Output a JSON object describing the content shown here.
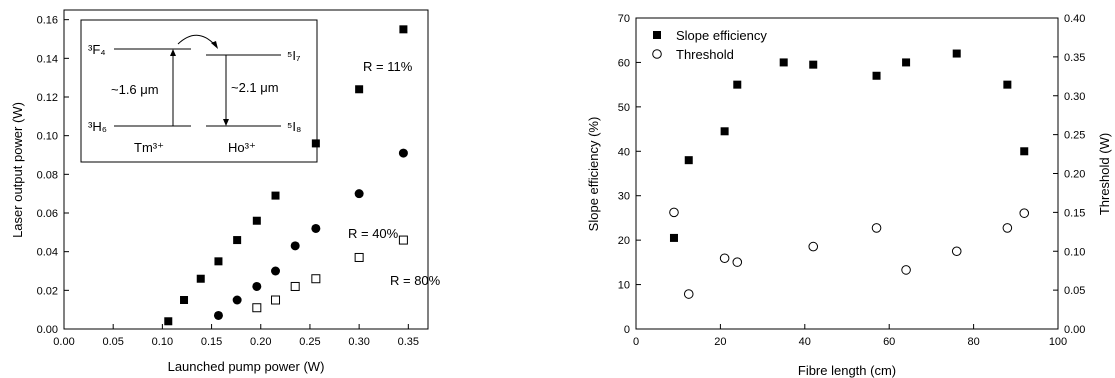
{
  "chart_data": [
    {
      "type": "scatter",
      "xlabel": "Launched pump power (W)",
      "ylabel": "Laser output power (W)",
      "xlim": [
        0.0,
        0.37
      ],
      "ylim": [
        0.0,
        0.165
      ],
      "xticks": [
        "0.00",
        "0.05",
        "0.10",
        "0.15",
        "0.20",
        "0.25",
        "0.30",
        "0.35"
      ],
      "yticks": [
        "0.00",
        "0.02",
        "0.04",
        "0.06",
        "0.08",
        "0.10",
        "0.12",
        "0.14",
        "0.16"
      ],
      "series": [
        {
          "name": "R = 11%",
          "marker": "filled-square",
          "points": [
            [
              0.106,
              0.004
            ],
            [
              0.122,
              0.015
            ],
            [
              0.139,
              0.026
            ],
            [
              0.157,
              0.035
            ],
            [
              0.176,
              0.046
            ],
            [
              0.196,
              0.056
            ],
            [
              0.215,
              0.069
            ],
            [
              0.256,
              0.096
            ],
            [
              0.3,
              0.124
            ],
            [
              0.345,
              0.155
            ]
          ]
        },
        {
          "name": "R = 40%",
          "marker": "filled-circle",
          "points": [
            [
              0.157,
              0.007
            ],
            [
              0.176,
              0.015
            ],
            [
              0.196,
              0.022
            ],
            [
              0.215,
              0.03
            ],
            [
              0.235,
              0.043
            ],
            [
              0.256,
              0.052
            ],
            [
              0.3,
              0.07
            ],
            [
              0.345,
              0.091
            ]
          ]
        },
        {
          "name": "R = 80%",
          "marker": "open-square",
          "points": [
            [
              0.196,
              0.011
            ],
            [
              0.215,
              0.015
            ],
            [
              0.235,
              0.022
            ],
            [
              0.256,
              0.026
            ],
            [
              0.3,
              0.037
            ],
            [
              0.345,
              0.046
            ]
          ]
        }
      ],
      "annotations": [
        "R = 11%",
        "R = 40%",
        "R = 80%"
      ],
      "inset": {
        "left_upper": "³F₄",
        "left_lower": "³H₆",
        "right_upper": "⁵I₇",
        "right_lower": "⁵I₈",
        "pump_label": "~1.6 μm",
        "emit_label": "~2.1 μm",
        "ion_left": "Tm³⁺",
        "ion_right": "Ho³⁺"
      }
    },
    {
      "type": "scatter",
      "xlabel": "Fibre length (cm)",
      "ylabel": "Slope efficiency (%)",
      "ylabel_right": "Threshold (W)",
      "xlim": [
        0,
        100
      ],
      "ylim": [
        0,
        70
      ],
      "ylim_right": [
        0.0,
        0.4
      ],
      "xticks": [
        "0",
        "20",
        "40",
        "60",
        "80",
        "100"
      ],
      "yticks": [
        "0",
        "10",
        "20",
        "30",
        "40",
        "50",
        "60",
        "70"
      ],
      "yticks_right": [
        "0.00",
        "0.05",
        "0.10",
        "0.15",
        "0.20",
        "0.25",
        "0.30",
        "0.35",
        "0.40"
      ],
      "legend_position": "top-left",
      "series": [
        {
          "name": "Slope efficiency",
          "marker": "filled-square",
          "axis": "left",
          "points": [
            [
              9,
              20.5
            ],
            [
              12.5,
              38
            ],
            [
              21,
              44.5
            ],
            [
              24,
              55
            ],
            [
              35,
              60
            ],
            [
              42,
              59.5
            ],
            [
              57,
              57
            ],
            [
              64,
              60
            ],
            [
              76,
              62
            ],
            [
              88,
              55
            ],
            [
              92,
              40
            ]
          ]
        },
        {
          "name": "Threshold",
          "marker": "open-circle",
          "axis": "right",
          "points": [
            [
              9,
              0.15
            ],
            [
              12.5,
              0.045
            ],
            [
              21,
              0.091
            ],
            [
              24,
              0.086
            ],
            [
              42,
              0.106
            ],
            [
              57,
              0.13
            ],
            [
              64,
              0.076
            ],
            [
              76,
              0.1
            ],
            [
              88,
              0.13
            ],
            [
              92,
              0.149
            ]
          ]
        }
      ]
    }
  ]
}
